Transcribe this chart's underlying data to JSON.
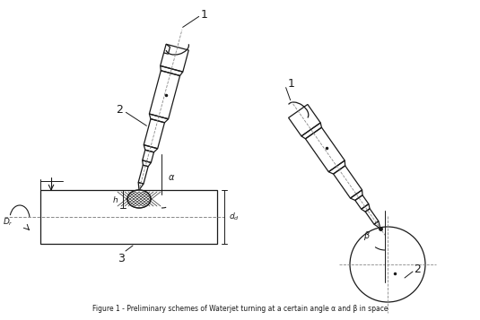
{
  "bg_color": "#ffffff",
  "line_color": "#1a1a1a",
  "dash_color": "#888888",
  "fig_width": 5.35,
  "fig_height": 3.57,
  "dpi": 100,
  "title": "Figure 1 - Preliminary schemes of Waterjet turning at a certain angle α and β in space"
}
